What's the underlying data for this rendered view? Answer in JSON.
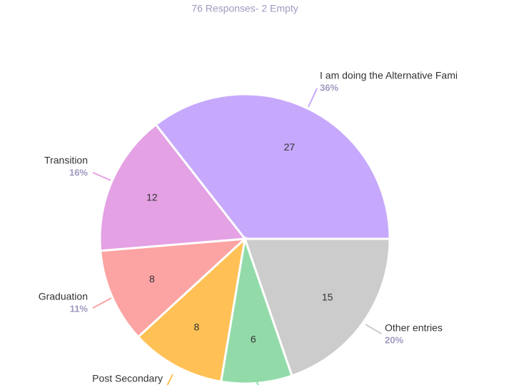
{
  "chart_data": {
    "type": "pie",
    "subtitle": "76 Responses- 2 Empty",
    "categories": [
      "I am doing the Alternative Fami",
      "Other entries",
      null,
      "Post Secondary",
      "Graduation",
      "Transition"
    ],
    "values": [
      27,
      15,
      6,
      8,
      8,
      12
    ],
    "percent_labels": [
      "36%",
      "20%",
      null,
      null,
      "11%",
      "16%"
    ],
    "colors": [
      "#c6a9fc",
      "#cccccc",
      "#92dba9",
      "#ffc155",
      "#fca3a3",
      "#e4a1e4"
    ]
  }
}
